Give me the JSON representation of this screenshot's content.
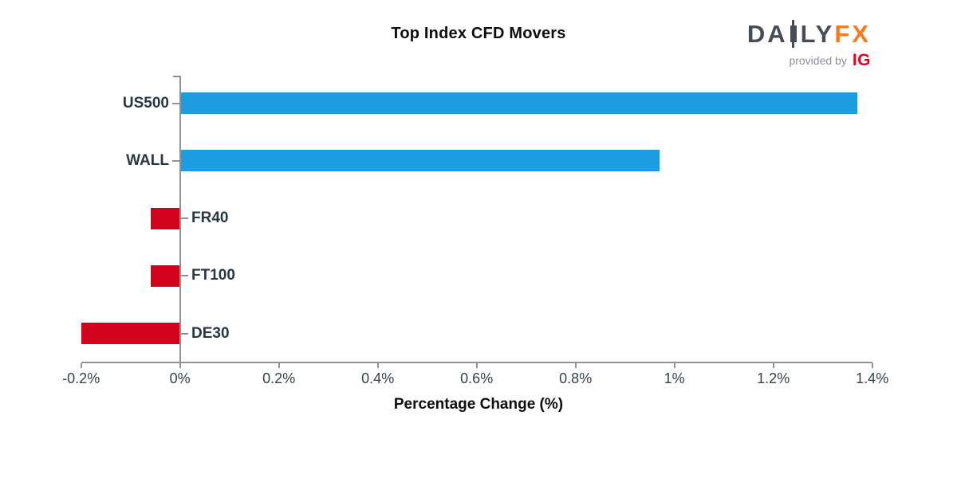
{
  "header": {
    "title": "Top Index CFD Movers"
  },
  "logo": {
    "part1": "DA",
    "part2": "LY",
    "fx": "FX",
    "provided_by": "provided by",
    "ig": "IG",
    "daily_color": "#474d57",
    "fx_color": "#f57d20",
    "provided_color": "#8a919c",
    "ig_color": "#e8001f"
  },
  "chart_data": {
    "type": "bar",
    "orientation": "horizontal",
    "title": "Top Index CFD Movers",
    "xlabel": "Percentage Change (%)",
    "ylabel": "",
    "categories": [
      "US500",
      "WALL",
      "FR40",
      "FT100",
      "DE30"
    ],
    "values": [
      1.37,
      0.97,
      -0.06,
      -0.06,
      -0.2
    ],
    "xlim": [
      -0.2,
      1.4
    ],
    "xticks": [
      -0.2,
      0,
      0.2,
      0.4,
      0.6,
      0.8,
      1,
      1.2,
      1.4
    ],
    "xtick_labels": [
      "-0.2%",
      "0%",
      "0.2%",
      "0.4%",
      "0.6%",
      "0.8%",
      "1%",
      "1.2%",
      "1.4%"
    ],
    "grid": false,
    "legend": "none",
    "positive_color": "#1e9ce1",
    "negative_color": "#d2041d",
    "axis_color": "#8f9296",
    "label_color": "#2b3645"
  }
}
